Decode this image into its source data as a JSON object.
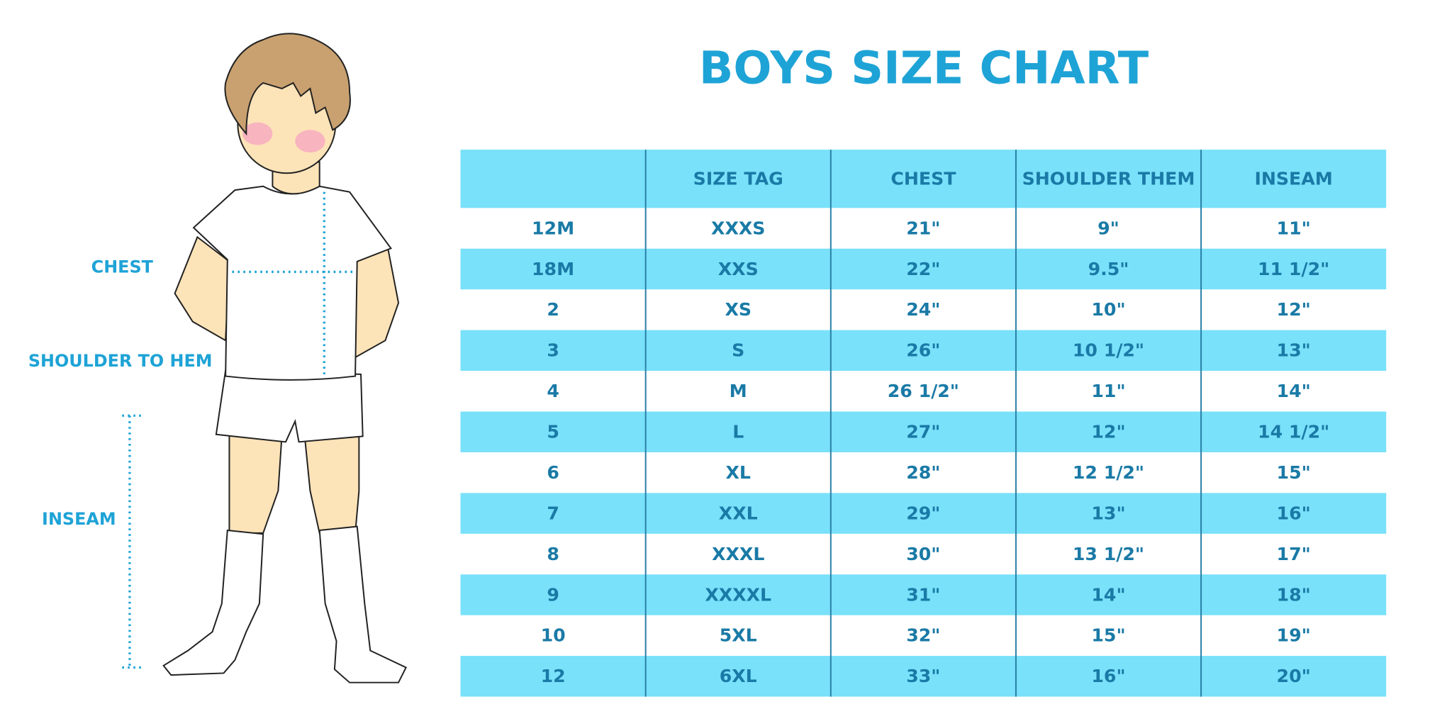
{
  "title": "BOYS SIZE CHART",
  "labels": {
    "chest": "CHEST",
    "shoulder": "SHOULDER TO HEM",
    "inseam": "INSEAM"
  },
  "table": {
    "header": [
      "SIZE TAG",
      "CHEST",
      "SHOULDER THEM",
      "INSEAM"
    ],
    "rows": [
      [
        "12M",
        "XXXS",
        "21\"",
        "9\"",
        "11\""
      ],
      [
        "18M",
        "XXS",
        "22\"",
        "9.5\"",
        "11 1/2\""
      ],
      [
        "2",
        "XS",
        "24\"",
        "10\"",
        "12\""
      ],
      [
        "3",
        "S",
        "26\"",
        "10 1/2\"",
        "13\""
      ],
      [
        "4",
        "M",
        "26 1/2\"",
        "11\"",
        "14\""
      ],
      [
        "5",
        "L",
        "27\"",
        "12\"",
        "14 1/2\""
      ],
      [
        "6",
        "XL",
        "28\"",
        "12 1/2\"",
        "15\""
      ],
      [
        "7",
        "XXL",
        "29\"",
        "13\"",
        "16\""
      ],
      [
        "8",
        "XXXL",
        "30\"",
        "13 1/2\"",
        "17\""
      ],
      [
        "9",
        "XXXXL",
        "31\"",
        "14\"",
        "18\""
      ],
      [
        "10",
        "5XL",
        "32\"",
        "15\"",
        "19\""
      ],
      [
        "12",
        "6XL",
        "33\"",
        "16\"",
        "20\""
      ]
    ]
  }
}
